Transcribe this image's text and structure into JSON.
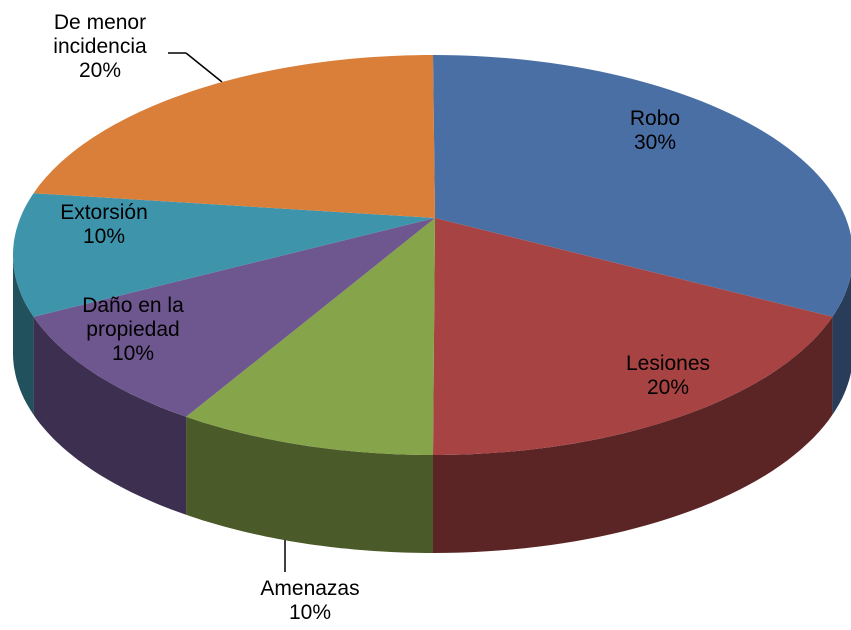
{
  "chart_data": {
    "type": "pie",
    "categories": [
      "Robo",
      "Lesiones",
      "Amenazas",
      "Daño en la propiedad",
      "Extorsión",
      "De menor incidencia"
    ],
    "values": [
      30,
      20,
      10,
      10,
      10,
      20
    ],
    "value_labels": [
      "30%",
      "20%",
      "10%",
      "10%",
      "10%",
      "20%"
    ],
    "colors": [
      "#4a6fa5",
      "#a74443",
      "#86a44a",
      "#6e568f",
      "#3e94ab",
      "#d97f3a"
    ],
    "three_d": true
  }
}
